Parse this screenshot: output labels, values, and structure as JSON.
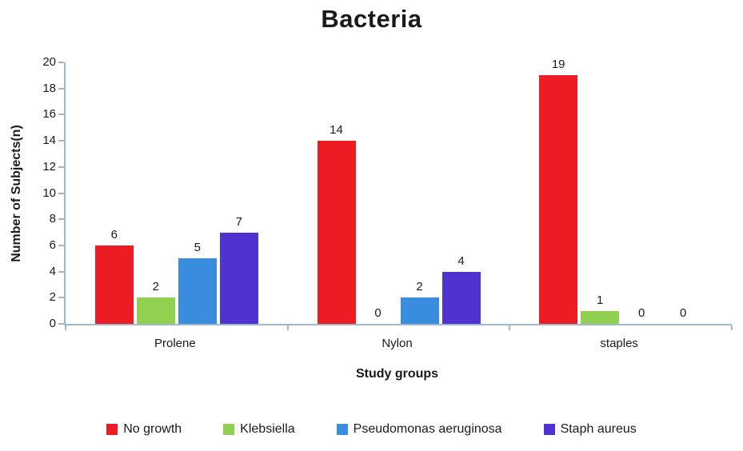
{
  "chart_data": {
    "type": "bar",
    "title": "Bacteria",
    "xlabel": "Study groups",
    "ylabel": "Number of Subjects(n)",
    "categories": [
      "Prolene",
      "Nylon",
      "staples"
    ],
    "series": [
      {
        "name": "No growth",
        "color": "#ed1c24",
        "values": [
          6,
          14,
          19
        ]
      },
      {
        "name": "Klebsiella",
        "color": "#92d050",
        "values": [
          2,
          0,
          1
        ]
      },
      {
        "name": "Pseudomonas aeruginosa",
        "color": "#3a8dde",
        "values": [
          5,
          2,
          0
        ]
      },
      {
        "name": "Staph aureus",
        "color": "#5032d0",
        "values": [
          7,
          4,
          0
        ]
      }
    ],
    "ylim": [
      0,
      20
    ],
    "ytick_step": 2,
    "data_labels": true,
    "grid": false,
    "legend_position": "bottom",
    "axis_color": "#9db8d0"
  }
}
